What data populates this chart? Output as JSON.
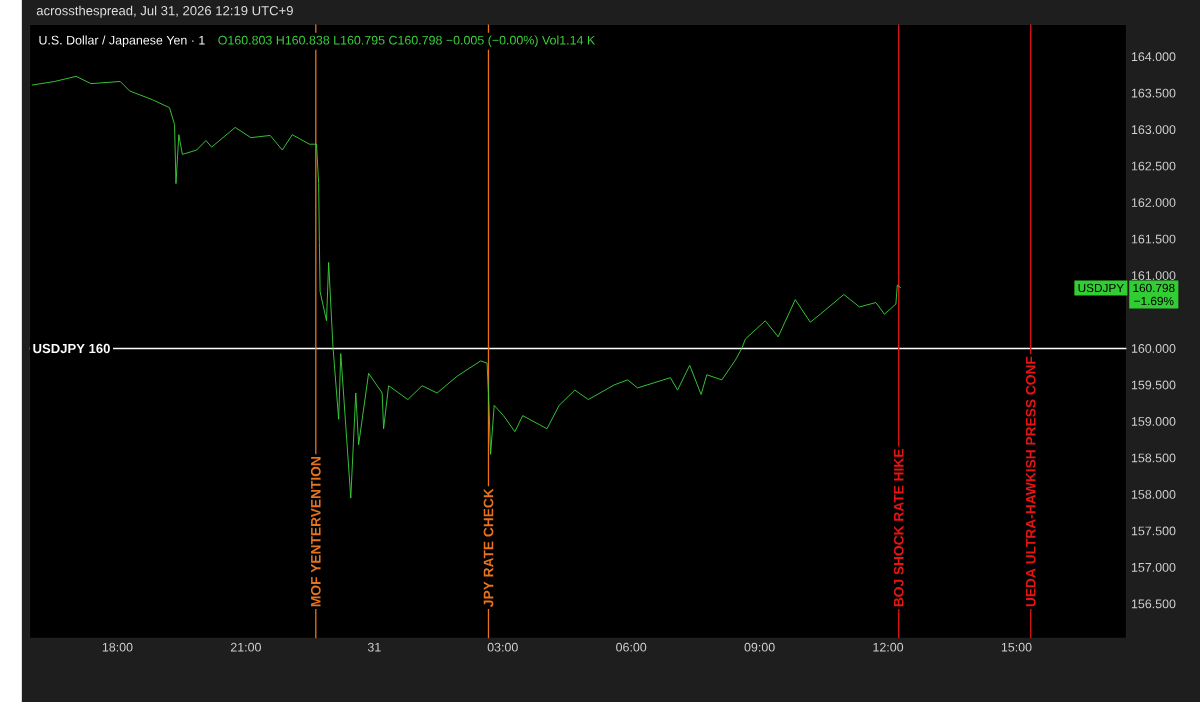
{
  "chart_data": {
    "type": "line",
    "title": "U.S. Dollar / Japanese Yen · 1",
    "subtitle": "O160.803 H160.838 L160.795 C160.798 −0.005 (−0.00%) Vol1.14 K",
    "x": [
      "2026-07-30T16:00",
      "2026-07-30T16:32",
      "2026-07-30T17:02",
      "2026-07-30T17:23",
      "2026-07-30T18:04",
      "2026-07-30T18:17",
      "2026-07-30T18:49",
      "2026-07-30T19:13",
      "2026-07-30T19:20",
      "2026-07-30T19:22",
      "2026-07-30T19:26",
      "2026-07-30T19:31",
      "2026-07-30T19:51",
      "2026-07-30T20:04",
      "2026-07-30T20:12",
      "2026-07-30T20:45",
      "2026-07-30T21:07",
      "2026-07-30T21:34",
      "2026-07-30T21:51",
      "2026-07-30T22:05",
      "2026-07-30T22:29",
      "2026-07-30T22:39",
      "2026-07-30T22:42",
      "2026-07-30T22:43",
      "2026-07-30T22:44",
      "2026-07-30T22:53",
      "2026-07-30T22:56",
      "2026-07-30T23:02",
      "2026-07-30T23:10",
      "2026-07-30T23:13",
      "2026-07-30T23:27",
      "2026-07-30T23:34",
      "2026-07-30T23:38",
      "2026-07-30T23:52",
      "2026-07-31T00:11",
      "2026-07-31T00:13",
      "2026-07-31T00:20",
      "2026-07-31T00:47",
      "2026-07-31T01:07",
      "2026-07-31T01:28",
      "2026-07-31T01:56",
      "2026-07-31T02:29",
      "2026-07-31T02:38",
      "2026-07-31T02:40",
      "2026-07-31T02:43",
      "2026-07-31T02:48",
      "2026-07-31T03:01",
      "2026-07-31T03:17",
      "2026-07-31T03:28",
      "2026-07-31T04:02",
      "2026-07-31T04:19",
      "2026-07-31T04:41",
      "2026-07-31T05:00",
      "2026-07-31T05:36",
      "2026-07-31T05:55",
      "2026-07-31T06:09",
      "2026-07-31T06:55",
      "2026-07-31T07:05",
      "2026-07-31T07:22",
      "2026-07-31T07:38",
      "2026-07-31T07:46",
      "2026-07-31T08:07",
      "2026-07-31T08:26",
      "2026-07-31T08:35",
      "2026-07-31T08:40",
      "2026-07-31T09:08",
      "2026-07-31T09:26",
      "2026-07-31T09:50",
      "2026-07-31T10:11",
      "2026-07-31T10:25",
      "2026-07-31T10:58",
      "2026-07-31T11:20",
      "2026-07-31T11:43",
      "2026-07-31T11:55",
      "2026-07-31T12:11",
      "2026-07-31T12:13",
      "2026-07-31T12:18"
    ],
    "series": [
      {
        "color": "#3ad13a",
        "values": [
          163.61,
          163.66,
          163.73,
          163.63,
          163.66,
          163.53,
          163.41,
          163.3,
          163.07,
          162.26,
          162.93,
          162.66,
          162.72,
          162.85,
          162.76,
          163.03,
          162.89,
          162.92,
          162.72,
          162.93,
          162.8,
          162.8,
          162.26,
          161.45,
          160.78,
          160.38,
          161.18,
          160.03,
          159.03,
          159.93,
          157.95,
          159.39,
          158.68,
          159.66,
          159.39,
          158.9,
          159.49,
          159.3,
          159.49,
          159.39,
          159.62,
          159.83,
          159.8,
          159.39,
          158.55,
          159.22,
          159.08,
          158.86,
          159.08,
          158.9,
          159.22,
          159.43,
          159.3,
          159.5,
          159.57,
          159.46,
          159.6,
          159.43,
          159.77,
          159.37,
          159.64,
          159.57,
          159.84,
          160.0,
          160.13,
          160.38,
          160.16,
          160.67,
          160.36,
          160.47,
          160.74,
          160.57,
          160.63,
          160.47,
          160.61,
          160.87,
          160.83
        ]
      }
    ],
    "xlim": [
      "2026-07-30T15:57",
      "2026-07-31T17:34"
    ],
    "ylim": [
      156.03,
      164.44
    ],
    "xticks": [
      {
        "value": "2026-07-30T18:00",
        "label": "18:00"
      },
      {
        "value": "2026-07-30T21:00",
        "label": "21:00"
      },
      {
        "value": "2026-07-31T00:00",
        "label": "31"
      },
      {
        "value": "2026-07-31T03:00",
        "label": "03:00"
      },
      {
        "value": "2026-07-31T06:00",
        "label": "06:00"
      },
      {
        "value": "2026-07-31T09:00",
        "label": "09:00"
      },
      {
        "value": "2026-07-31T12:00",
        "label": "12:00"
      },
      {
        "value": "2026-07-31T15:00",
        "label": "15:00"
      }
    ],
    "yticks": [
      {
        "value": 156.5,
        "label": "156.500"
      },
      {
        "value": 157,
        "label": "157.000"
      },
      {
        "value": 157.5,
        "label": "157.500"
      },
      {
        "value": 158,
        "label": "158.000"
      },
      {
        "value": 158.5,
        "label": "158.500"
      },
      {
        "value": 159,
        "label": "159.000"
      },
      {
        "value": 159.5,
        "label": "159.500"
      },
      {
        "value": 160,
        "label": "160.000"
      },
      {
        "value": 161,
        "label": "161.000"
      },
      {
        "value": 161.5,
        "label": "161.500"
      },
      {
        "value": 162,
        "label": "162.000"
      },
      {
        "value": 162.5,
        "label": "162.500"
      },
      {
        "value": 163,
        "label": "163.000"
      },
      {
        "value": 163.5,
        "label": "163.500"
      },
      {
        "value": 164,
        "label": "164.000"
      }
    ],
    "ref_lines": [
      {
        "axis": "y",
        "value": 160,
        "label": "USDJPY 160",
        "color": "#ffffff"
      },
      {
        "axis": "x",
        "value": "2026-07-30T22:38",
        "label": "MOF YENTERVENTION",
        "color": "#e8731c"
      },
      {
        "axis": "x",
        "value": "2026-07-31T02:40",
        "label": "JPY RATE CHECK",
        "color": "#e8731c"
      },
      {
        "axis": "x",
        "value": "2026-07-31T12:15",
        "label": "BOJ SHOCK RATE HIKE",
        "color": "#e81414"
      },
      {
        "axis": "x",
        "value": "2026-07-31T15:20",
        "label": "UEDA ULTRA-HAWKISH PRESS CONF",
        "color": "#e81414"
      }
    ],
    "annotations": [
      "acrossthespread, Jul 31, 2026 12:19 UTC+9",
      "USDJPY",
      "160.798",
      "−1.69%"
    ]
  }
}
